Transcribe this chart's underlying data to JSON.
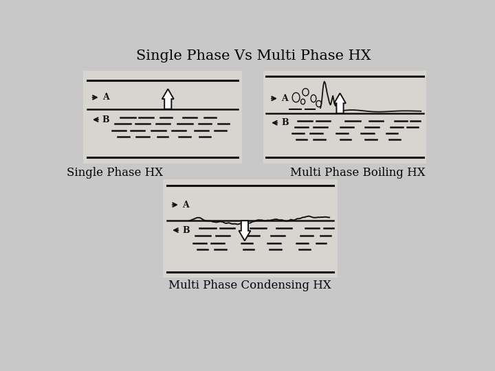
{
  "title": "Single Phase Vs Multi Phase HX",
  "label_single": "Single Phase HX",
  "label_boiling": "Multi Phase Boiling HX",
  "label_condensing": "Multi Phase Condensing HX",
  "fig_bg": "#c8c8c8",
  "box_bg": "#d8d5d0",
  "lc": "#111111",
  "title_fontsize": 15,
  "label_fontsize": 12
}
